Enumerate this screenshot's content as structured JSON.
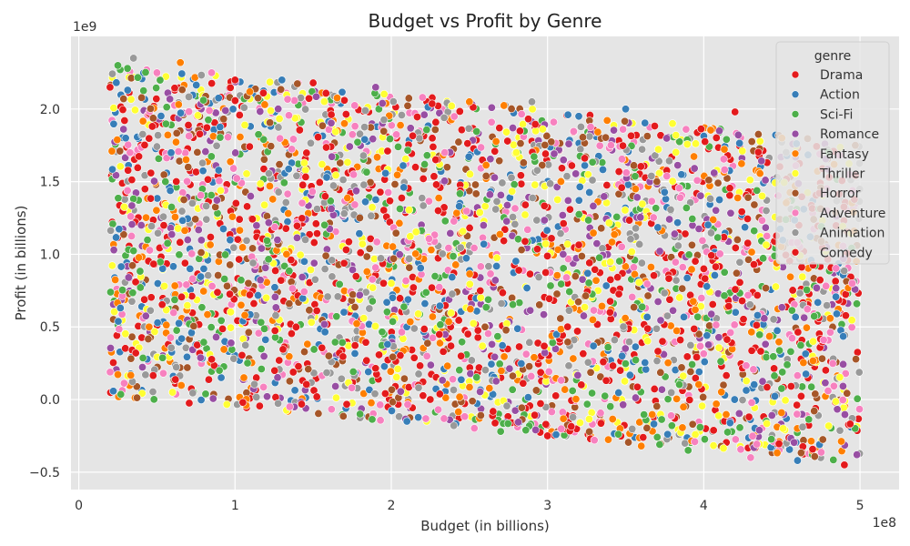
{
  "chart_data": {
    "type": "scatter",
    "title": "Budget vs Profit by Genre",
    "xlabel": "Budget (in billions)",
    "ylabel": "Profit (in billions)",
    "x_offset_label": "1e8",
    "y_offset_label": "1e9",
    "xlim": [
      -0.05,
      5.25
    ],
    "ylim": [
      -0.62,
      2.5
    ],
    "x_ticks": [
      {
        "value": 0,
        "label": "0"
      },
      {
        "value": 1,
        "label": "1"
      },
      {
        "value": 2,
        "label": "2"
      },
      {
        "value": 3,
        "label": "3"
      },
      {
        "value": 4,
        "label": "4"
      },
      {
        "value": 5,
        "label": "5"
      }
    ],
    "y_ticks": [
      {
        "value": -0.5,
        "label": "−0.5"
      },
      {
        "value": 0.0,
        "label": "0.0"
      },
      {
        "value": 0.5,
        "label": "0.5"
      },
      {
        "value": 1.0,
        "label": "1.0"
      },
      {
        "value": 1.5,
        "label": "1.5"
      },
      {
        "value": 2.0,
        "label": "2.0"
      }
    ],
    "grid": true,
    "background": "#e5e5e5",
    "legend": {
      "title": "genre",
      "placement": "top-right",
      "entries": [
        {
          "name": "Drama",
          "color": "#e41a1c"
        },
        {
          "name": "Action",
          "color": "#377eb8"
        },
        {
          "name": "Sci-Fi",
          "color": "#4daf4a"
        },
        {
          "name": "Romance",
          "color": "#984ea3"
        },
        {
          "name": "Fantasy",
          "color": "#ff7f00"
        },
        {
          "name": "Thriller",
          "color": "#ffff33"
        },
        {
          "name": "Horror",
          "color": "#a65628"
        },
        {
          "name": "Adventure",
          "color": "#f781bf"
        },
        {
          "name": "Animation",
          "color": "#999999"
        },
        {
          "name": "Comedy",
          "color": "#e41a1c"
        }
      ]
    },
    "points": [
      [
        0.2,
        2.15,
        0
      ],
      [
        0.25,
        2.3,
        2
      ],
      [
        0.3,
        1.8,
        1
      ],
      [
        0.35,
        2.35,
        8
      ],
      [
        0.4,
        1.2,
        3
      ],
      [
        0.45,
        0.5,
        4
      ],
      [
        0.5,
        2.25,
        7
      ],
      [
        0.6,
        0.05,
        5
      ],
      [
        0.65,
        2.32,
        4
      ],
      [
        0.7,
        1.6,
        6
      ],
      [
        0.8,
        0.9,
        1
      ],
      [
        0.85,
        2.25,
        7
      ],
      [
        0.9,
        0.2,
        2
      ],
      [
        1.0,
        2.2,
        9
      ],
      [
        1.05,
        -0.02,
        0
      ],
      [
        1.1,
        1.4,
        3
      ],
      [
        1.2,
        0.7,
        5
      ],
      [
        1.3,
        2.2,
        1
      ],
      [
        1.35,
        -0.05,
        7
      ],
      [
        1.45,
        1.1,
        8
      ],
      [
        1.5,
        2.18,
        0
      ],
      [
        1.6,
        0.3,
        6
      ],
      [
        1.7,
        1.9,
        4
      ],
      [
        1.8,
        -0.1,
        2
      ],
      [
        1.9,
        2.15,
        3
      ],
      [
        2.0,
        0.8,
        5
      ],
      [
        2.1,
        -0.15,
        1
      ],
      [
        2.2,
        2.08,
        7
      ],
      [
        2.3,
        1.3,
        0
      ],
      [
        2.4,
        -0.18,
        8
      ],
      [
        2.5,
        2.05,
        4
      ],
      [
        2.6,
        0.5,
        6
      ],
      [
        2.7,
        -0.22,
        2
      ],
      [
        2.8,
        1.7,
        5
      ],
      [
        2.9,
        2.05,
        8
      ],
      [
        3.0,
        -0.25,
        0
      ],
      [
        3.1,
        1.0,
        3
      ],
      [
        3.2,
        1.95,
        1
      ],
      [
        3.3,
        -0.28,
        7
      ],
      [
        3.4,
        0.6,
        9
      ],
      [
        3.5,
        2.0,
        1
      ],
      [
        3.6,
        -0.32,
        4
      ],
      [
        3.7,
        1.5,
        6
      ],
      [
        3.8,
        1.9,
        5
      ],
      [
        3.9,
        -0.35,
        2
      ],
      [
        4.0,
        0.9,
        0
      ],
      [
        4.1,
        1.85,
        3
      ],
      [
        4.2,
        1.98,
        0
      ],
      [
        4.3,
        -0.4,
        7
      ],
      [
        4.4,
        1.3,
        8
      ],
      [
        4.5,
        1.8,
        4
      ],
      [
        4.6,
        -0.42,
        1
      ],
      [
        4.7,
        0.4,
        5
      ],
      [
        4.8,
        1.7,
        2
      ],
      [
        4.9,
        -0.45,
        0
      ],
      [
        4.95,
        0.8,
        7
      ],
      [
        4.97,
        1.75,
        6
      ],
      [
        4.98,
        -0.38,
        3
      ]
    ]
  }
}
